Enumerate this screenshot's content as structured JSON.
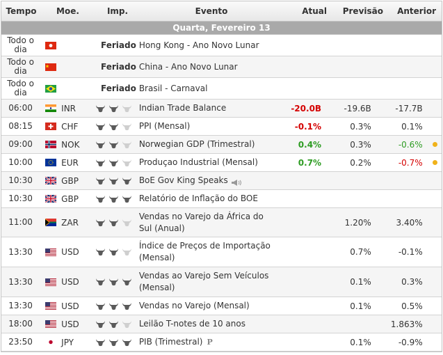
{
  "header": {
    "time": "Tempo",
    "currency": "Moe.",
    "importance": "Imp.",
    "event": "Evento",
    "actual": "Atual",
    "forecast": "Previsão",
    "previous": "Anterior"
  },
  "day_label": "Quarta, Fevereiro 13",
  "holiday_label": "Feriado",
  "all_day_label": "Todo o dia",
  "colors": {
    "negative": "#d40000",
    "positive": "#2e9c23",
    "indicator": "#f0b21a",
    "day_bar": "#a9a9a9"
  },
  "rows": [
    {
      "time": "Todo o dia",
      "flag": "hong-kong-flag",
      "currency": "",
      "holiday": true,
      "event": "Hong Kong - Ano Novo Lunar",
      "actual": "",
      "forecast": "",
      "previous": ""
    },
    {
      "time": "Todo o dia",
      "flag": "china-flag",
      "currency": "",
      "holiday": true,
      "event": "China - Ano Novo Lunar",
      "actual": "",
      "forecast": "",
      "previous": ""
    },
    {
      "time": "Todo o dia",
      "flag": "brazil-flag",
      "currency": "",
      "holiday": true,
      "event": "Brasil - Carnaval",
      "actual": "",
      "forecast": "",
      "previous": ""
    },
    {
      "time": "06:00",
      "flag": "india-flag",
      "currency": "INR",
      "importance": 2,
      "event": "Indian Trade Balance",
      "actual": "-20.0B",
      "actual_color": "red",
      "forecast": "-19.6B",
      "previous": "-17.7B"
    },
    {
      "time": "08:15",
      "flag": "switzerland-flag",
      "currency": "CHF",
      "importance": 2,
      "event": "PPI (Mensal)",
      "actual": "-0.1%",
      "actual_color": "red",
      "forecast": "0.3%",
      "previous": "0.1%"
    },
    {
      "time": "09:00",
      "flag": "norway-flag",
      "currency": "NOK",
      "importance": 2,
      "event": "Norwegian GDP (Trimestral)",
      "actual": "0.4%",
      "actual_color": "green",
      "forecast": "0.3%",
      "previous": "-0.6%",
      "previous_color": "green",
      "indicator": true
    },
    {
      "time": "10:00",
      "flag": "eu-flag",
      "currency": "EUR",
      "importance": 2,
      "event": "Produçao Industrial (Mensal)",
      "actual": "0.7%",
      "actual_color": "green",
      "forecast": "0.2%",
      "previous": "-0.7%",
      "previous_color": "red",
      "indicator": true
    },
    {
      "time": "10:30",
      "flag": "uk-flag",
      "currency": "GBP",
      "importance": 3,
      "event": "BoE Gov King Speaks",
      "speaker": true,
      "actual": "",
      "forecast": "",
      "previous": ""
    },
    {
      "time": "10:30",
      "flag": "uk-flag",
      "currency": "GBP",
      "importance": 3,
      "event": "Relatório de Inflação do BOE",
      "actual": "",
      "forecast": "",
      "previous": ""
    },
    {
      "time": "11:00",
      "flag": "south-africa-flag",
      "currency": "ZAR",
      "importance": 2,
      "event": "Vendas no Varejo da África do Sul (Anual)",
      "actual": "",
      "forecast": "1.20%",
      "previous": "3.40%"
    },
    {
      "time": "13:30",
      "flag": "usa-flag",
      "currency": "USD",
      "importance": 2,
      "event": "Índice de Preços de Importação (Mensal)",
      "actual": "",
      "forecast": "0.7%",
      "previous": "-0.1%"
    },
    {
      "time": "13:30",
      "flag": "usa-flag",
      "currency": "USD",
      "importance": 3,
      "event": "Vendas ao Varejo Sem Veículos (Mensal)",
      "actual": "",
      "forecast": "0.1%",
      "previous": "0.3%"
    },
    {
      "time": "13:30",
      "flag": "usa-flag",
      "currency": "USD",
      "importance": 3,
      "event": "Vendas no Varejo (Mensal)",
      "actual": "",
      "forecast": "0.1%",
      "previous": "0.5%"
    },
    {
      "time": "18:00",
      "flag": "usa-flag",
      "currency": "USD",
      "importance": 2,
      "event": "Leilão T-notes de 10 anos",
      "actual": "",
      "forecast": "",
      "previous": "1.863%"
    },
    {
      "time": "23:50",
      "flag": "japan-flag",
      "currency": "JPY",
      "importance": 3,
      "event": "PIB (Trimestral)",
      "preliminary": "P",
      "actual": "",
      "forecast": "0.1%",
      "previous": "-0.9%"
    }
  ]
}
